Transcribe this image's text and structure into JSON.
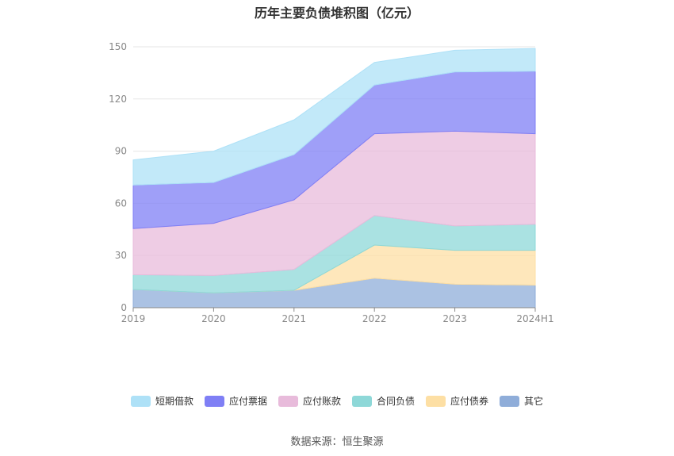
{
  "title": "历年主要负债堆积图（亿元）",
  "source": "数据来源：恒生聚源",
  "chart_data": {
    "type": "area",
    "stacked": true,
    "title": "历年主要负债堆积图（亿元）",
    "categories": [
      "2019",
      "2020",
      "2021",
      "2022",
      "2023",
      "2024H1"
    ],
    "ylim": [
      0,
      150
    ],
    "yticks": [
      0,
      30,
      60,
      90,
      120,
      150
    ],
    "grid": true,
    "legend_position": "bottom",
    "series": [
      {
        "name": "其它",
        "color": "#8fadd9",
        "values": [
          10.5,
          8.5,
          10,
          17,
          13.5,
          13
        ]
      },
      {
        "name": "应付债券",
        "color": "#fddfa4",
        "values": [
          0,
          0,
          0,
          19,
          19.5,
          20
        ]
      },
      {
        "name": "合同负债",
        "color": "#8ed8d8",
        "values": [
          8.5,
          10,
          12,
          17,
          14,
          15
        ]
      },
      {
        "name": "应付账款",
        "color": "#e8bbdb",
        "values": [
          26.5,
          30,
          40,
          47,
          54.5,
          52
        ]
      },
      {
        "name": "应付票据",
        "color": "#7f7ff5",
        "values": [
          25,
          23.5,
          26,
          28,
          34,
          36
        ]
      },
      {
        "name": "短期借款",
        "color": "#aee1f7",
        "values": [
          14.5,
          18,
          20,
          13,
          12.5,
          13
        ]
      }
    ]
  }
}
